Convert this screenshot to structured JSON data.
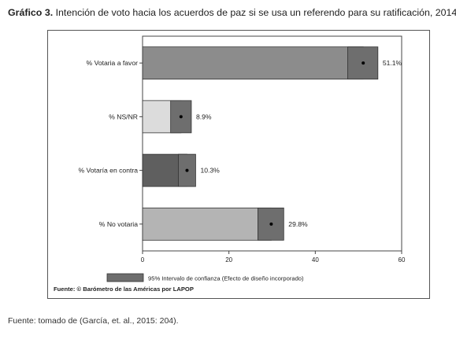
{
  "figure": {
    "label": "Gráfico 3.",
    "caption": " Intención de voto hacia los acuerdos de paz si se usa un referendo para su ratificación, 2014.",
    "chart_source": "Fuente: © Barómetro de las Américas por LAPOP",
    "bottom_source": "Fuente: tomado de (García, et. al., 2015: 204)."
  },
  "chart_data": {
    "type": "bar",
    "orientation": "horizontal",
    "categories": [
      "% Votaria a favor",
      "% NS/NR",
      "% Votaría en contra",
      "% No votaria"
    ],
    "values": [
      51.1,
      8.9,
      10.3,
      29.8
    ],
    "value_labels": [
      "51.1%",
      "8.9%",
      "10.3%",
      "29.8%"
    ],
    "ci_low": [
      47.5,
      6.5,
      8.3,
      26.7
    ],
    "ci_high": [
      54.5,
      11.3,
      12.3,
      32.7
    ],
    "bar_colors": [
      "#8c8c8c",
      "#dcdcdc",
      "#5f5f5f",
      "#b4b4b4"
    ],
    "ci_color": "#6e6e6e",
    "xlim": [
      0,
      60
    ],
    "xticks": [
      0,
      20,
      40,
      60
    ],
    "legend": {
      "label": "95% Intervalo de confianza (Efecto de diseño incorporado)",
      "placement": "bottom"
    },
    "grid": false
  }
}
